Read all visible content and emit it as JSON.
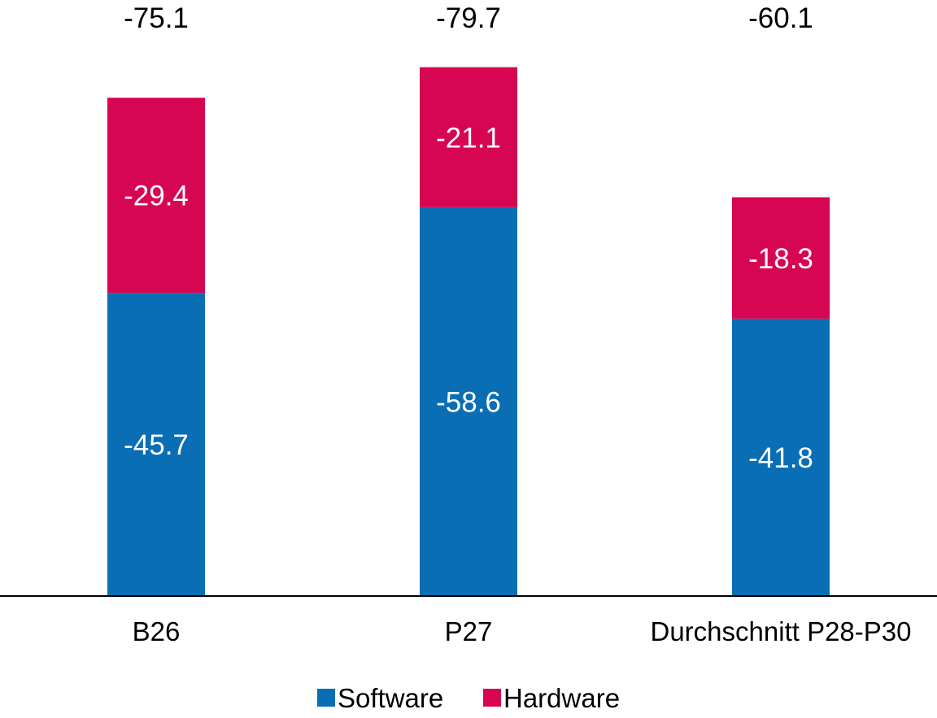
{
  "chart_data": {
    "type": "bar",
    "stacked": true,
    "categories": [
      "B26",
      "P27",
      "Durchschnitt P28-P30"
    ],
    "series": [
      {
        "name": "Software",
        "color": "#0A6EB4",
        "values": [
          -45.7,
          -58.6,
          -41.8
        ]
      },
      {
        "name": "Hardware",
        "color": "#D70652",
        "values": [
          -29.4,
          -21.1,
          -18.3
        ]
      }
    ],
    "totals": [
      -75.1,
      -79.7,
      -60.1
    ],
    "segment_label_color": "#ffffff",
    "total_label_color": "#000000",
    "title": "",
    "xlabel": "",
    "ylabel": "",
    "ylim": [
      -84,
      0
    ],
    "grid": false,
    "legend": "bottom-center"
  }
}
